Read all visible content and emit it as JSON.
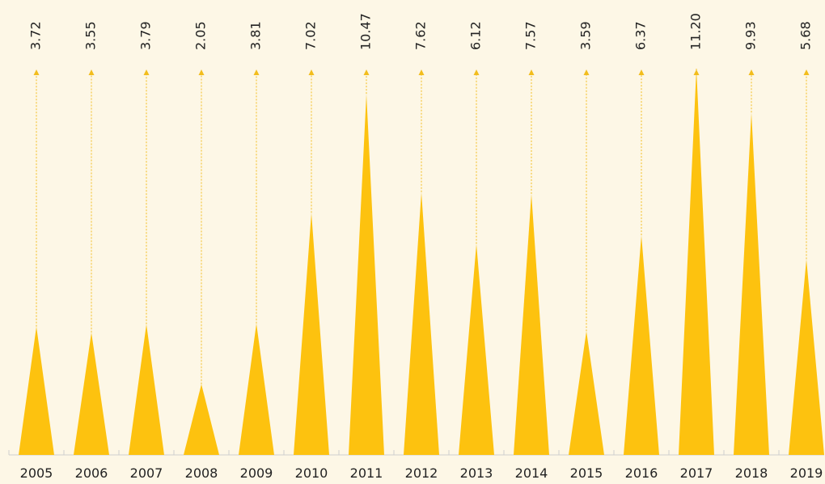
{
  "chart_data": {
    "type": "pictorial-bar",
    "categories": [
      "2005",
      "2006",
      "2007",
      "2008",
      "2009",
      "2010",
      "2011",
      "2012",
      "2013",
      "2014",
      "2015",
      "2016",
      "2017",
      "2018",
      "2019"
    ],
    "values": [
      3.72,
      3.55,
      3.79,
      2.05,
      3.81,
      7.02,
      10.47,
      7.62,
      6.12,
      7.57,
      3.59,
      6.37,
      11.2,
      9.93,
      5.68
    ],
    "value_labels": [
      "3.72",
      "3.55",
      "3.79",
      "2.05",
      "3.81",
      "7.02",
      "10.47",
      "7.62",
      "6.12",
      "7.57",
      "3.59",
      "6.37",
      "11.20",
      "9.93",
      "5.68"
    ],
    "color": "#fdc20f",
    "line_color": "#f2bd1d"
  }
}
